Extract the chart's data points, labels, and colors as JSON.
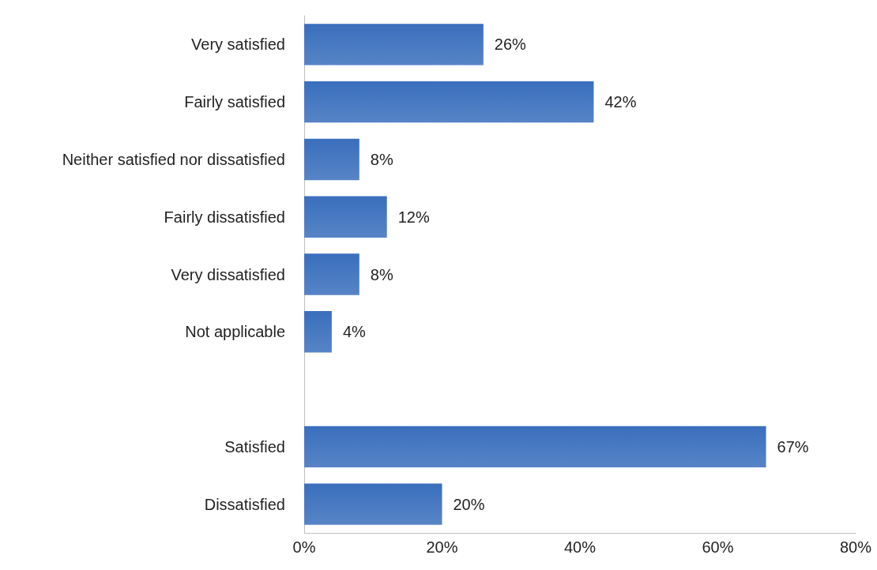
{
  "chart_data": {
    "type": "bar",
    "orientation": "horizontal",
    "categories": [
      "Very satisfied",
      "Fairly satisfied",
      "Neither satisfied nor dissatisfied",
      "Fairly dissatisfied",
      "Very dissatisfied",
      "Not applicable",
      null,
      "Satisfied",
      "Dissatisfied"
    ],
    "values": [
      26,
      42,
      8,
      12,
      8,
      4,
      null,
      67,
      20
    ],
    "value_labels": [
      "26%",
      "42%",
      "8%",
      "12%",
      "8%",
      "4%",
      null,
      "67%",
      "20%"
    ],
    "color": "#3a6fbd",
    "xlim": [
      0,
      80
    ],
    "xticks": [
      {
        "value": 0,
        "label": "0%"
      },
      {
        "value": 20,
        "label": "20%"
      },
      {
        "value": 40,
        "label": "40%"
      },
      {
        "value": 60,
        "label": "60%"
      },
      {
        "value": 80,
        "label": "80%"
      }
    ],
    "grid": false
  }
}
